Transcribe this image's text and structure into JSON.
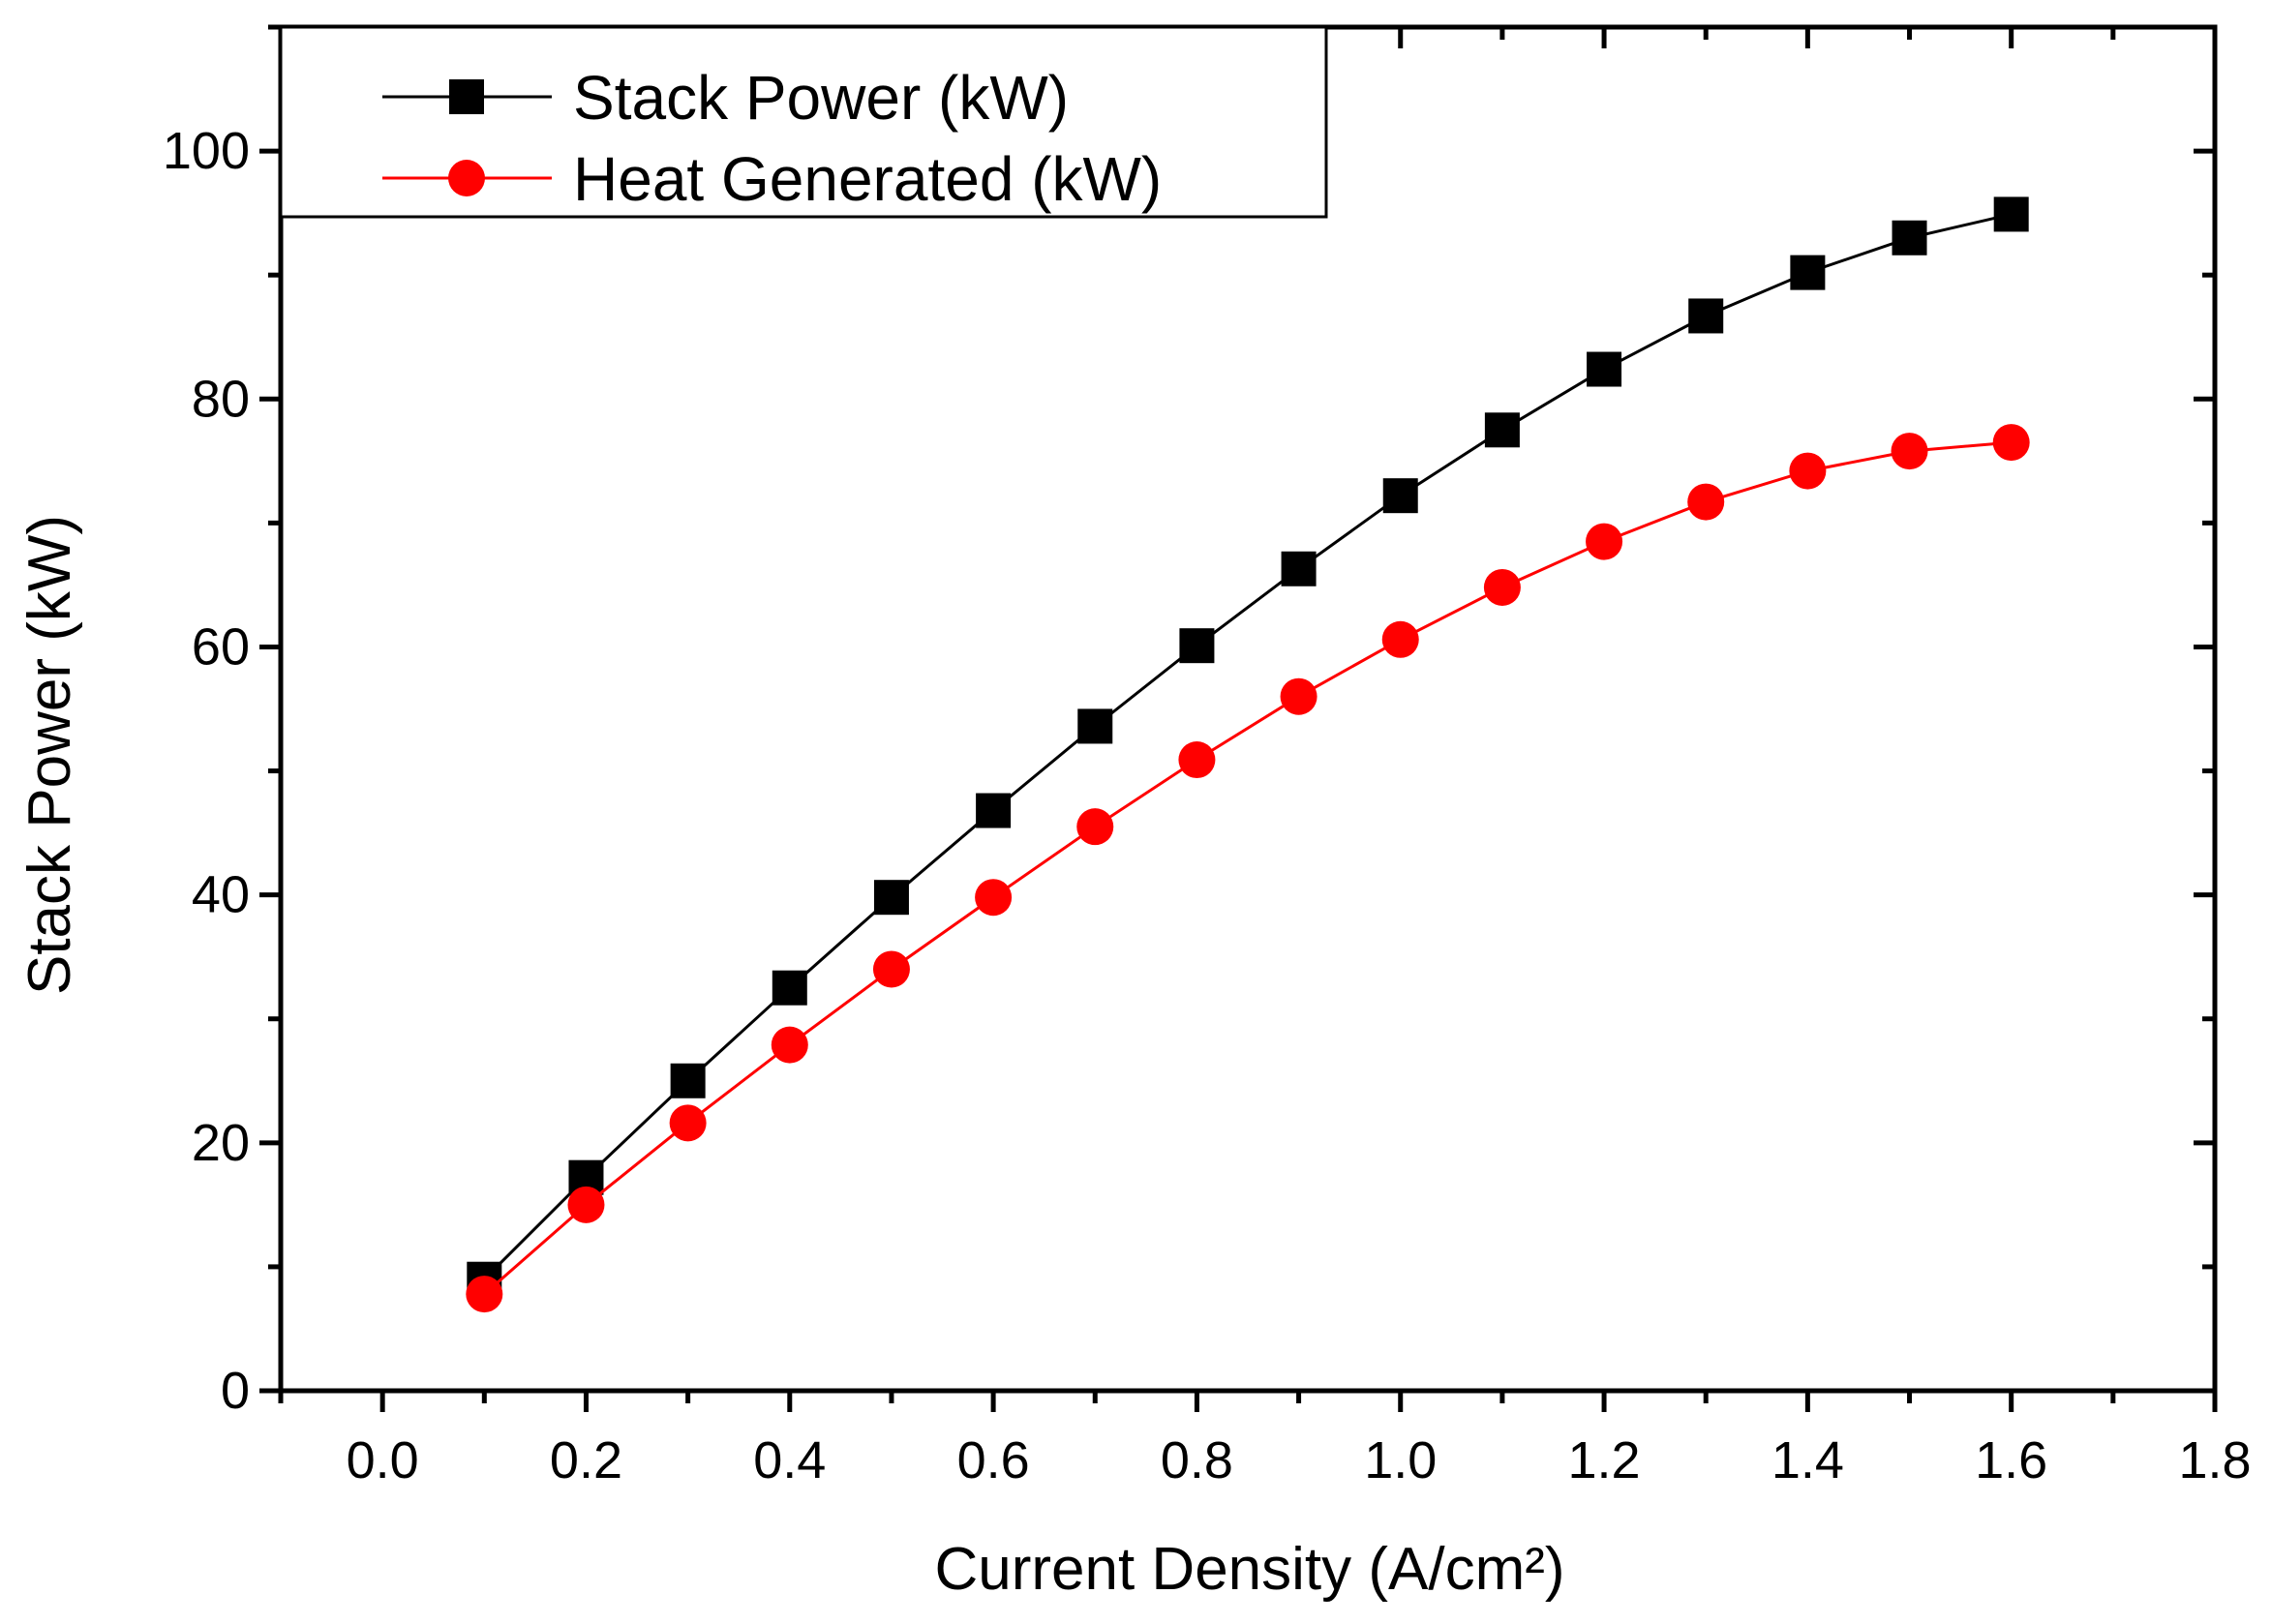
{
  "chart_data": {
    "type": "line",
    "title": "",
    "xlabel": "Current Density (A/cm²)",
    "ylabel": "Stack Power (kW)",
    "xlim": [
      -0.1,
      1.8
    ],
    "ylim": [
      0,
      110
    ],
    "xticks": [
      0.0,
      0.2,
      0.4,
      0.6,
      0.8,
      1.0,
      1.2,
      1.4,
      1.6,
      1.8
    ],
    "xtick_labels": [
      "0.0",
      "0.2",
      "0.4",
      "0.6",
      "0.8",
      "1.0",
      "1.2",
      "1.4",
      "1.6",
      "1.8"
    ],
    "yticks": [
      0,
      20,
      40,
      60,
      80,
      100
    ],
    "ytick_labels": [
      "0",
      "20",
      "40",
      "60",
      "80",
      "100"
    ],
    "grid": false,
    "legend_position": "top-left",
    "x": [
      0.1,
      0.2,
      0.3,
      0.4,
      0.5,
      0.6,
      0.7,
      0.8,
      0.9,
      1.0,
      1.1,
      1.2,
      1.3,
      1.4,
      1.5,
      1.6
    ],
    "series": [
      {
        "name": "Stack Power (kW)",
        "color": "#000000",
        "marker": "square",
        "values": [
          9.0,
          17.2,
          25.0,
          32.5,
          39.8,
          46.8,
          53.6,
          60.1,
          66.3,
          72.2,
          77.5,
          82.4,
          86.7,
          90.2,
          93.0,
          94.9
        ]
      },
      {
        "name": "Heat Generated (kW)",
        "color": "#ff0000",
        "marker": "circle",
        "values": [
          7.8,
          15.0,
          21.6,
          27.9,
          34.0,
          39.8,
          45.5,
          50.9,
          56.0,
          60.6,
          64.8,
          68.5,
          71.7,
          74.2,
          75.8,
          76.5
        ]
      }
    ]
  }
}
